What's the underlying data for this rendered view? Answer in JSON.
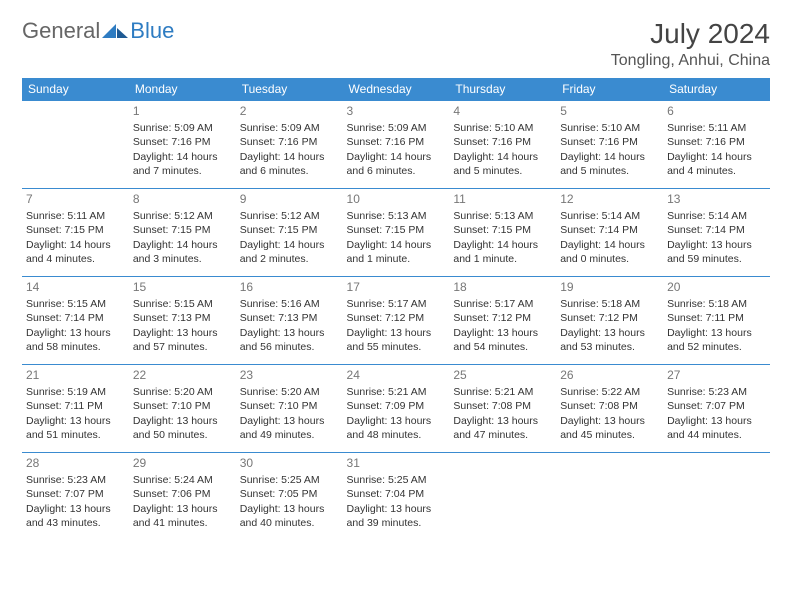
{
  "brand": {
    "part1": "General",
    "part2": "Blue"
  },
  "title": "July 2024",
  "location": "Tongling, Anhui, China",
  "colors": {
    "header_bg": "#3a8bd0",
    "header_text": "#ffffff",
    "border": "#3a8bd0",
    "brand_gray": "#666666",
    "brand_blue": "#2e7cc2",
    "text": "#333333",
    "daynum": "#777777",
    "background": "#ffffff"
  },
  "typography": {
    "title_fontsize": 28,
    "location_fontsize": 16,
    "header_fontsize": 12,
    "cell_fontsize": 10.5,
    "daynum_fontsize": 12
  },
  "weekdays": [
    "Sunday",
    "Monday",
    "Tuesday",
    "Wednesday",
    "Thursday",
    "Friday",
    "Saturday"
  ],
  "weeks": [
    [
      {
        "day": "",
        "lines": []
      },
      {
        "day": "1",
        "lines": [
          "Sunrise: 5:09 AM",
          "Sunset: 7:16 PM",
          "Daylight: 14 hours and 7 minutes."
        ]
      },
      {
        "day": "2",
        "lines": [
          "Sunrise: 5:09 AM",
          "Sunset: 7:16 PM",
          "Daylight: 14 hours and 6 minutes."
        ]
      },
      {
        "day": "3",
        "lines": [
          "Sunrise: 5:09 AM",
          "Sunset: 7:16 PM",
          "Daylight: 14 hours and 6 minutes."
        ]
      },
      {
        "day": "4",
        "lines": [
          "Sunrise: 5:10 AM",
          "Sunset: 7:16 PM",
          "Daylight: 14 hours and 5 minutes."
        ]
      },
      {
        "day": "5",
        "lines": [
          "Sunrise: 5:10 AM",
          "Sunset: 7:16 PM",
          "Daylight: 14 hours and 5 minutes."
        ]
      },
      {
        "day": "6",
        "lines": [
          "Sunrise: 5:11 AM",
          "Sunset: 7:16 PM",
          "Daylight: 14 hours and 4 minutes."
        ]
      }
    ],
    [
      {
        "day": "7",
        "lines": [
          "Sunrise: 5:11 AM",
          "Sunset: 7:15 PM",
          "Daylight: 14 hours and 4 minutes."
        ]
      },
      {
        "day": "8",
        "lines": [
          "Sunrise: 5:12 AM",
          "Sunset: 7:15 PM",
          "Daylight: 14 hours and 3 minutes."
        ]
      },
      {
        "day": "9",
        "lines": [
          "Sunrise: 5:12 AM",
          "Sunset: 7:15 PM",
          "Daylight: 14 hours and 2 minutes."
        ]
      },
      {
        "day": "10",
        "lines": [
          "Sunrise: 5:13 AM",
          "Sunset: 7:15 PM",
          "Daylight: 14 hours and 1 minute."
        ]
      },
      {
        "day": "11",
        "lines": [
          "Sunrise: 5:13 AM",
          "Sunset: 7:15 PM",
          "Daylight: 14 hours and 1 minute."
        ]
      },
      {
        "day": "12",
        "lines": [
          "Sunrise: 5:14 AM",
          "Sunset: 7:14 PM",
          "Daylight: 14 hours and 0 minutes."
        ]
      },
      {
        "day": "13",
        "lines": [
          "Sunrise: 5:14 AM",
          "Sunset: 7:14 PM",
          "Daylight: 13 hours and 59 minutes."
        ]
      }
    ],
    [
      {
        "day": "14",
        "lines": [
          "Sunrise: 5:15 AM",
          "Sunset: 7:14 PM",
          "Daylight: 13 hours and 58 minutes."
        ]
      },
      {
        "day": "15",
        "lines": [
          "Sunrise: 5:15 AM",
          "Sunset: 7:13 PM",
          "Daylight: 13 hours and 57 minutes."
        ]
      },
      {
        "day": "16",
        "lines": [
          "Sunrise: 5:16 AM",
          "Sunset: 7:13 PM",
          "Daylight: 13 hours and 56 minutes."
        ]
      },
      {
        "day": "17",
        "lines": [
          "Sunrise: 5:17 AM",
          "Sunset: 7:12 PM",
          "Daylight: 13 hours and 55 minutes."
        ]
      },
      {
        "day": "18",
        "lines": [
          "Sunrise: 5:17 AM",
          "Sunset: 7:12 PM",
          "Daylight: 13 hours and 54 minutes."
        ]
      },
      {
        "day": "19",
        "lines": [
          "Sunrise: 5:18 AM",
          "Sunset: 7:12 PM",
          "Daylight: 13 hours and 53 minutes."
        ]
      },
      {
        "day": "20",
        "lines": [
          "Sunrise: 5:18 AM",
          "Sunset: 7:11 PM",
          "Daylight: 13 hours and 52 minutes."
        ]
      }
    ],
    [
      {
        "day": "21",
        "lines": [
          "Sunrise: 5:19 AM",
          "Sunset: 7:11 PM",
          "Daylight: 13 hours and 51 minutes."
        ]
      },
      {
        "day": "22",
        "lines": [
          "Sunrise: 5:20 AM",
          "Sunset: 7:10 PM",
          "Daylight: 13 hours and 50 minutes."
        ]
      },
      {
        "day": "23",
        "lines": [
          "Sunrise: 5:20 AM",
          "Sunset: 7:10 PM",
          "Daylight: 13 hours and 49 minutes."
        ]
      },
      {
        "day": "24",
        "lines": [
          "Sunrise: 5:21 AM",
          "Sunset: 7:09 PM",
          "Daylight: 13 hours and 48 minutes."
        ]
      },
      {
        "day": "25",
        "lines": [
          "Sunrise: 5:21 AM",
          "Sunset: 7:08 PM",
          "Daylight: 13 hours and 47 minutes."
        ]
      },
      {
        "day": "26",
        "lines": [
          "Sunrise: 5:22 AM",
          "Sunset: 7:08 PM",
          "Daylight: 13 hours and 45 minutes."
        ]
      },
      {
        "day": "27",
        "lines": [
          "Sunrise: 5:23 AM",
          "Sunset: 7:07 PM",
          "Daylight: 13 hours and 44 minutes."
        ]
      }
    ],
    [
      {
        "day": "28",
        "lines": [
          "Sunrise: 5:23 AM",
          "Sunset: 7:07 PM",
          "Daylight: 13 hours and 43 minutes."
        ]
      },
      {
        "day": "29",
        "lines": [
          "Sunrise: 5:24 AM",
          "Sunset: 7:06 PM",
          "Daylight: 13 hours and 41 minutes."
        ]
      },
      {
        "day": "30",
        "lines": [
          "Sunrise: 5:25 AM",
          "Sunset: 7:05 PM",
          "Daylight: 13 hours and 40 minutes."
        ]
      },
      {
        "day": "31",
        "lines": [
          "Sunrise: 5:25 AM",
          "Sunset: 7:04 PM",
          "Daylight: 13 hours and 39 minutes."
        ]
      },
      {
        "day": "",
        "lines": []
      },
      {
        "day": "",
        "lines": []
      },
      {
        "day": "",
        "lines": []
      }
    ]
  ]
}
